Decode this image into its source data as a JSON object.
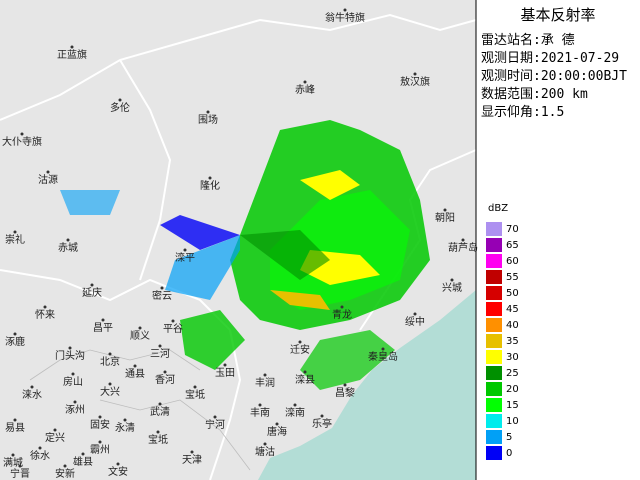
{
  "panel": {
    "title": "基本反射率",
    "info": [
      {
        "label": "雷达站名:",
        "value": "承 德"
      },
      {
        "label": "观测日期:",
        "value": "2021-07-29"
      },
      {
        "label": "观测时间:",
        "value": "20:00:00BJT"
      },
      {
        "label": "数据范围:",
        "value": "200 km"
      },
      {
        "label": "显示仰角:",
        "value": "1.5"
      }
    ]
  },
  "legend": {
    "unit": "dBZ",
    "levels": [
      70,
      65,
      60,
      55,
      50,
      45,
      40,
      35,
      30,
      25,
      20,
      15,
      10,
      5,
      0
    ],
    "colors": [
      "#ad90f0",
      "#9600b4",
      "#ff00f0",
      "#c00000",
      "#d60000",
      "#ff0000",
      "#ff9000",
      "#e7c000",
      "#ffff00",
      "#009000",
      "#00c800",
      "#02ff02",
      "#00ecec",
      "#01a0f6",
      "#0000f6"
    ]
  },
  "places": [
    "翁牛特旗",
    "正蓝旗",
    "敖汉旗",
    "多伦",
    "赤峰",
    "围场",
    "大仆寺旗",
    "沽源",
    "隆化",
    "朝阳",
    "崇礼",
    "赤城",
    "滦平",
    "葫芦岛",
    "兴城",
    "延庆",
    "怀来",
    "密云",
    "绥中",
    "青龙",
    "昌平",
    "涿鹿",
    "顺义",
    "平谷",
    "门头沟",
    "北京",
    "三河",
    "迁安",
    "秦皇岛",
    "房山",
    "通县",
    "香河",
    "玉田",
    "丰润",
    "滦县",
    "昌黎",
    "大兴",
    "宝坻",
    "涞水",
    "涿州",
    "武清",
    "丰南",
    "滦南",
    "乐亭",
    "易县",
    "固安",
    "永清",
    "宁河",
    "唐海",
    "定兴",
    "霸州",
    "满城",
    "徐水",
    "安新",
    "文安",
    "天津",
    "塘沽",
    "雄县",
    "宁晋",
    "宝坻"
  ]
}
